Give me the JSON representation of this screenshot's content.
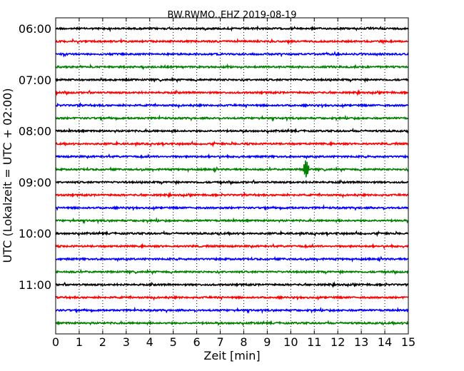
{
  "chart_data": {
    "type": "line",
    "title": "BW.RWMO..EHZ 2019-08-19",
    "xlabel": "Zeit  [min]",
    "ylabel": "UTC (Lokalzeit = UTC + 02:00)",
    "xlim": [
      0,
      15
    ],
    "x_ticks": [
      "0",
      "1",
      "2",
      "3",
      "4",
      "5",
      "6",
      "7",
      "8",
      "9",
      "10",
      "11",
      "12",
      "13",
      "14",
      "15"
    ],
    "y_tick_labels": [
      "06:00",
      "07:00",
      "08:00",
      "09:00",
      "10:00",
      "11:00"
    ],
    "trace_start_labels": [
      "06:00",
      "06:15",
      "06:30",
      "06:45",
      "07:00",
      "07:15",
      "07:30",
      "07:45",
      "08:00",
      "08:15",
      "08:30",
      "08:45",
      "09:00",
      "09:15",
      "09:30",
      "09:45",
      "10:00",
      "10:15",
      "10:30",
      "10:45",
      "11:00",
      "11:15",
      "11:30",
      "11:45"
    ],
    "trace_colors": [
      "#000000",
      "#ff0000",
      "#0000ff",
      "#008000"
    ],
    "grid": "vertical-dotted",
    "events": [
      {
        "trace": "08:45",
        "minute": 10.65,
        "amplitude": "large"
      }
    ]
  }
}
